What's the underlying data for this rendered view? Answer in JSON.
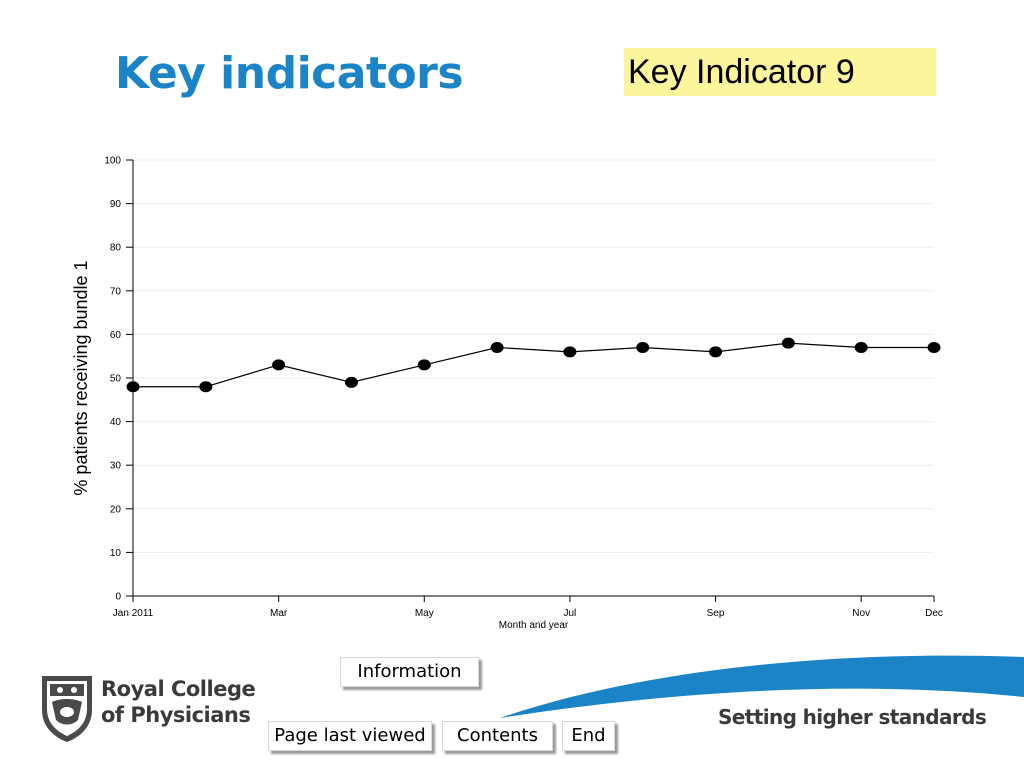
{
  "header": {
    "title": "Key indicators",
    "indicator_label": "Key Indicator 9"
  },
  "chart_data": {
    "type": "line",
    "title": "",
    "xlabel": "Month and year",
    "ylabel": "% patients receiving bundle 1",
    "ylim": [
      0,
      100
    ],
    "yticks": [
      0,
      10,
      20,
      30,
      40,
      50,
      60,
      70,
      80,
      90,
      100
    ],
    "x_count": 12,
    "xtick_labels": [
      {
        "index": 0,
        "label": "Jan 2011"
      },
      {
        "index": 2,
        "label": "Mar"
      },
      {
        "index": 4,
        "label": "May"
      },
      {
        "index": 6,
        "label": "Jul"
      },
      {
        "index": 8,
        "label": "Sep"
      },
      {
        "index": 10,
        "label": "Nov"
      },
      {
        "index": 11,
        "label": "Dec"
      }
    ],
    "series": [
      {
        "values": [
          48,
          48,
          53,
          49,
          53,
          57,
          56,
          57,
          56,
          58,
          57,
          57
        ]
      }
    ],
    "grid": true,
    "colors": {
      "line": "#000000",
      "marker": "#000000",
      "grid": "#ececec"
    }
  },
  "nav": {
    "information": "Information",
    "page_last_viewed": "Page last viewed",
    "contents": "Contents",
    "end": "End"
  },
  "footer": {
    "org_line1": "Royal College",
    "org_line2": "of Physicians",
    "tagline": "Setting higher standards"
  },
  "colors": {
    "title": "#1a84c7",
    "badge": "#fdf59b",
    "swoosh": "#1a84c7"
  }
}
